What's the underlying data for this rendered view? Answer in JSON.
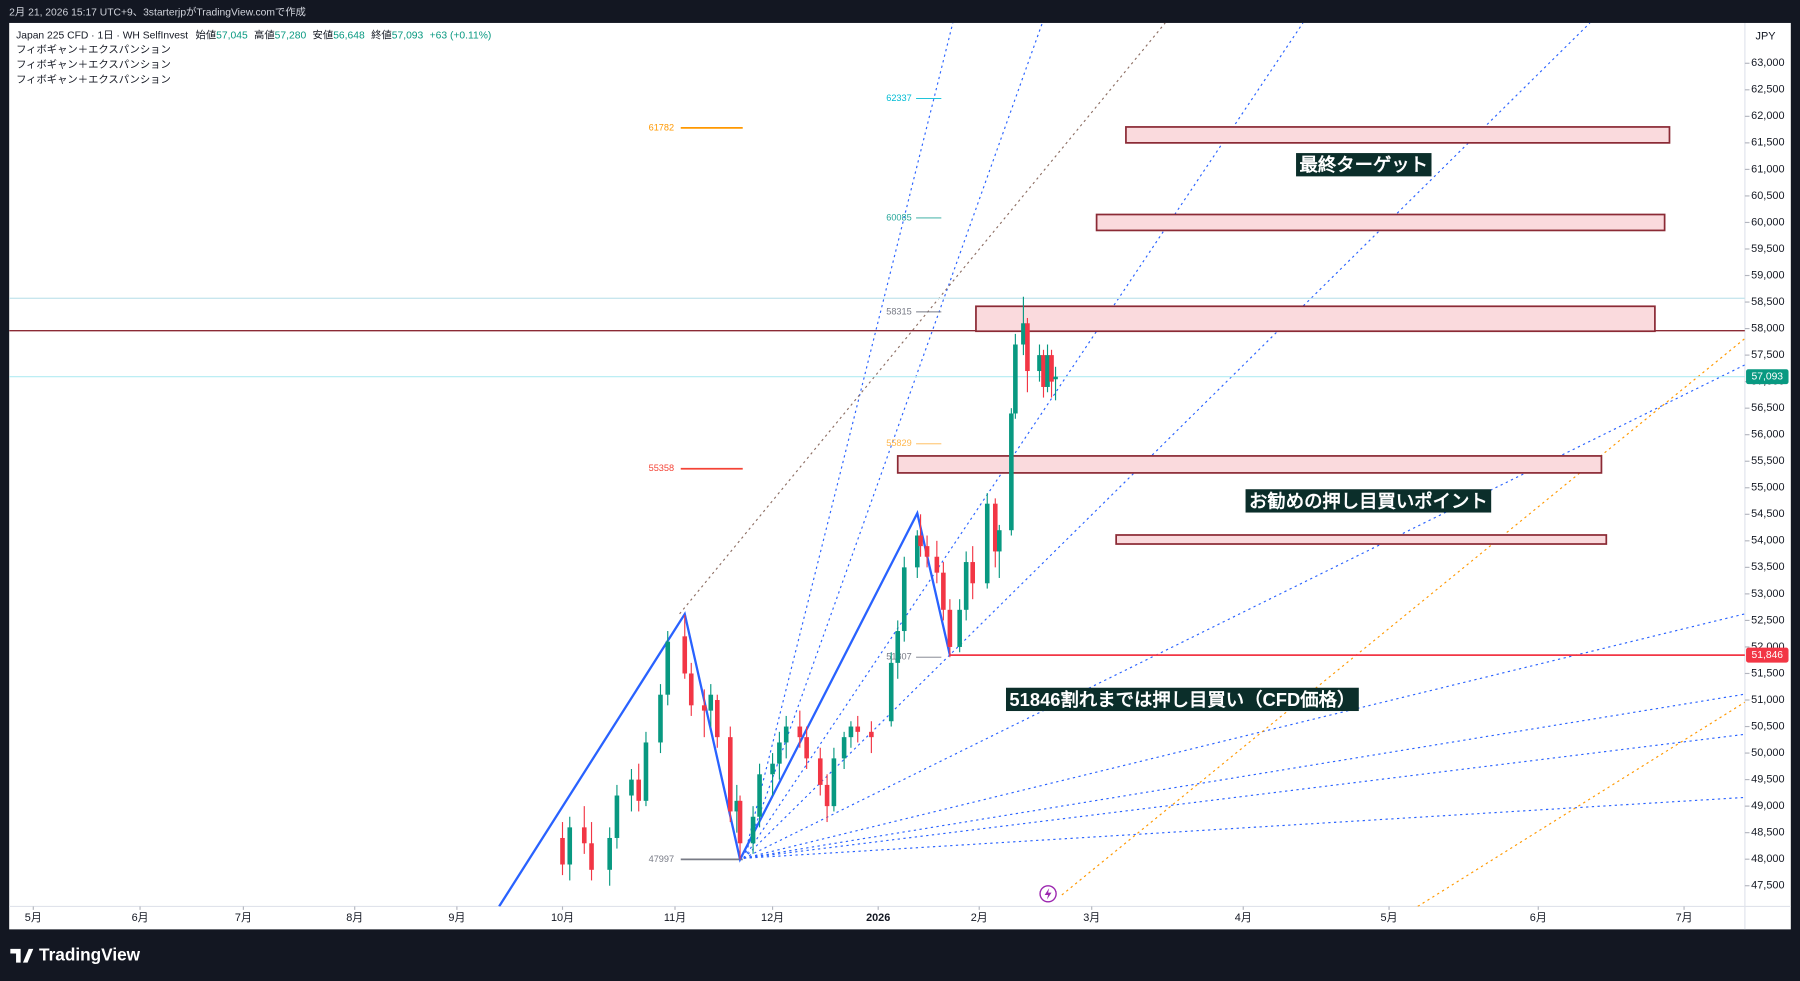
{
  "header": {
    "timestamp": "2月 21, 2026 15:17 UTC+9、3starterjpがTradingView.comで作成"
  },
  "legend": {
    "symbol": "Japan 225 CFD · 1日 · WH SelfInvest",
    "fields": [
      {
        "label": "始値",
        "value": "57,045"
      },
      {
        "label": "高値",
        "value": "57,280"
      },
      {
        "label": "安値",
        "value": "56,648"
      },
      {
        "label": "終値",
        "value": "57,093"
      }
    ],
    "change": "+63 (+0.11%)",
    "studies": [
      "フィボギャン＋エクスパンション",
      "フィボギャン＋エクスパンション",
      "フィボギャン＋エクスパンション"
    ]
  },
  "footer": {
    "brand": "TradingView"
  },
  "chart_data": {
    "type": "candlestick",
    "currency": "JPY",
    "up_color": "#089981",
    "down_color": "#f23645",
    "xlim": [
      "2025-04-24",
      "2026-07-14"
    ],
    "xticks": [
      {
        "value": "2025-05-01",
        "label": "5月"
      },
      {
        "value": "2025-06-01",
        "label": "6月"
      },
      {
        "value": "2025-07-01",
        "label": "7月"
      },
      {
        "value": "2025-08-01",
        "label": "8月"
      },
      {
        "value": "2025-09-01",
        "label": "9月"
      },
      {
        "value": "2025-10-01",
        "label": "10月"
      },
      {
        "value": "2025-11-01",
        "label": "11月"
      },
      {
        "value": "2025-12-01",
        "label": "12月"
      },
      {
        "value": "2026-01-01",
        "label": "2026"
      },
      {
        "value": "2026-02-01",
        "label": "2月"
      },
      {
        "value": "2026-03-01",
        "label": "3月"
      },
      {
        "value": "2026-04-01",
        "label": "4月"
      },
      {
        "value": "2026-05-01",
        "label": "5月"
      },
      {
        "value": "2026-06-01",
        "label": "6月"
      },
      {
        "value": "2026-07-01",
        "label": "7月"
      }
    ],
    "ylim": [
      47110,
      63760
    ],
    "yticks": [
      {
        "value": 47500,
        "label": "47,500"
      },
      {
        "value": 48000,
        "label": "48,000"
      },
      {
        "value": 48500,
        "label": "48,500"
      },
      {
        "value": 49000,
        "label": "49,000"
      },
      {
        "value": 49500,
        "label": "49,500"
      },
      {
        "value": 50000,
        "label": "50,000"
      },
      {
        "value": 50500,
        "label": "50,500"
      },
      {
        "value": 51000,
        "label": "51,000"
      },
      {
        "value": 51500,
        "label": "51,500"
      },
      {
        "value": 52000,
        "label": "52,000"
      },
      {
        "value": 52500,
        "label": "52,500"
      },
      {
        "value": 53000,
        "label": "53,000"
      },
      {
        "value": 53500,
        "label": "53,500"
      },
      {
        "value": 54000,
        "label": "54,000"
      },
      {
        "value": 54500,
        "label": "54,500"
      },
      {
        "value": 55000,
        "label": "55,000"
      },
      {
        "value": 55500,
        "label": "55,500"
      },
      {
        "value": 56000,
        "label": "56,000"
      },
      {
        "value": 56500,
        "label": "56,500"
      },
      {
        "value": 57000,
        "label": "57,000"
      },
      {
        "value": 57500,
        "label": "57,500"
      },
      {
        "value": 58000,
        "label": "58,000"
      },
      {
        "value": 58500,
        "label": "58,500"
      },
      {
        "value": 59000,
        "label": "59,000"
      },
      {
        "value": 59500,
        "label": "59,500"
      },
      {
        "value": 60000,
        "label": "60,000"
      },
      {
        "value": 60500,
        "label": "60,500"
      },
      {
        "value": 61000,
        "label": "61,000"
      },
      {
        "value": 61500,
        "label": "61,500"
      },
      {
        "value": 62000,
        "label": "62,000"
      },
      {
        "value": 62500,
        "label": "62,500"
      },
      {
        "value": 63000,
        "label": "63,000"
      }
    ],
    "x": [
      "2025-10-01",
      "2025-10-03",
      "2025-10-07",
      "2025-10-09",
      "2025-10-14",
      "2025-10-16",
      "2025-10-20",
      "2025-10-22",
      "2025-10-24",
      "2025-10-28",
      "2025-10-30",
      "2025-11-04",
      "2025-11-06",
      "2025-11-10",
      "2025-11-12",
      "2025-11-14",
      "2025-11-18",
      "2025-11-20",
      "2025-11-21",
      "2025-11-25",
      "2025-11-27",
      "2025-12-01",
      "2025-12-03",
      "2025-12-05",
      "2025-12-09",
      "2025-12-11",
      "2025-12-15",
      "2025-12-17",
      "2025-12-19",
      "2025-12-22",
      "2025-12-24",
      "2025-12-26",
      "2025-12-30",
      "2026-01-05",
      "2026-01-07",
      "2026-01-09",
      "2026-01-13",
      "2026-01-14",
      "2026-01-16",
      "2026-01-19",
      "2026-01-21",
      "2026-01-23",
      "2026-01-26",
      "2026-01-28",
      "2026-01-30",
      "2026-02-03",
      "2026-02-05",
      "2026-02-06",
      "2026-02-09",
      "2026-02-10",
      "2026-02-12",
      "2026-02-13",
      "2026-02-16",
      "2026-02-17",
      "2026-02-18",
      "2026-02-19",
      "2026-02-20"
    ],
    "open": [
      48400,
      47900,
      48600,
      48300,
      47800,
      48400,
      49200,
      49500,
      49100,
      50200,
      51100,
      52200,
      51500,
      50900,
      50800,
      51000,
      50300,
      48900,
      49100,
      48300,
      48800,
      49600,
      49800,
      50200,
      50500,
      50300,
      49900,
      49400,
      49000,
      49900,
      50300,
      50500,
      50400,
      50600,
      51700,
      52300,
      53500,
      54100,
      53900,
      53700,
      53400,
      52700,
      52000,
      52700,
      53600,
      53200,
      54700,
      53800,
      54200,
      56400,
      57700,
      58100,
      57200,
      57500,
      56900,
      57500,
      57045
    ],
    "high": [
      48700,
      48800,
      49000,
      48700,
      48600,
      49400,
      49700,
      49800,
      50400,
      51300,
      52300,
      52600,
      51700,
      51200,
      51300,
      51100,
      50500,
      49400,
      49200,
      49000,
      49800,
      50000,
      50400,
      50700,
      50800,
      50500,
      50100,
      49600,
      50100,
      50400,
      50600,
      50700,
      50600,
      51900,
      52500,
      53700,
      54200,
      54500,
      54100,
      54000,
      53600,
      52900,
      52900,
      53800,
      53900,
      54900,
      54800,
      54300,
      56500,
      57900,
      58600,
      58200,
      57700,
      57600,
      57700,
      57600,
      57280
    ],
    "low": [
      47700,
      47600,
      48100,
      47600,
      47500,
      48200,
      48900,
      48900,
      49000,
      50000,
      50900,
      51400,
      50700,
      50300,
      50500,
      50100,
      48700,
      48500,
      47997,
      48100,
      48600,
      49200,
      49500,
      49900,
      50100,
      49700,
      49200,
      48700,
      48900,
      49700,
      50100,
      50200,
      50000,
      50500,
      51400,
      52100,
      53300,
      53700,
      53500,
      53200,
      52500,
      51807,
      51900,
      52500,
      52900,
      53100,
      53500,
      53300,
      54100,
      56300,
      57500,
      56800,
      57000,
      56700,
      56800,
      56700,
      56648
    ],
    "close": [
      47900,
      48600,
      48300,
      47800,
      48400,
      49200,
      49500,
      49100,
      50200,
      51100,
      52100,
      51500,
      50900,
      50800,
      51100,
      50300,
      48900,
      49100,
      48300,
      48800,
      49600,
      49800,
      50200,
      50500,
      50300,
      49900,
      49400,
      49000,
      49900,
      50300,
      50500,
      50400,
      50300,
      51700,
      52300,
      53500,
      54100,
      53900,
      53700,
      53400,
      52700,
      52000,
      52700,
      53600,
      53200,
      54700,
      53800,
      54200,
      56400,
      57700,
      58100,
      57200,
      57500,
      56900,
      57500,
      57000,
      57093
    ],
    "zigzag": {
      "color": "#2962ff",
      "x": [
        "2025-09-13",
        "2025-11-04",
        "2025-11-21",
        "2026-01-13",
        "2026-01-23"
      ],
      "values": [
        47110,
        52620,
        47997,
        54520,
        51846
      ]
    },
    "zones": [
      {
        "start": "2026-03-08",
        "end": "2026-06-28",
        "low": 61500,
        "high": 61800
      },
      {
        "start": "2026-03-02",
        "end": "2026-06-27",
        "low": 59850,
        "high": 60150
      },
      {
        "start": "2026-01-31",
        "end": "2026-06-25",
        "low": 57950,
        "high": 58420
      },
      {
        "start": "2026-01-07",
        "end": "2026-06-14",
        "low": 55280,
        "high": 55600
      },
      {
        "start": "2026-03-06",
        "end": "2026-06-15",
        "low": 53940,
        "high": 54110
      }
    ],
    "zone_color": "#8b2a35",
    "hlines": [
      {
        "value": 57960,
        "color": "#8b2a35"
      },
      {
        "value": 58570,
        "color": "#c8e6ee"
      }
    ],
    "levels": [
      {
        "value": 62337,
        "color": "#00bcd4"
      },
      {
        "value": 61782,
        "color": "#ff9800"
      },
      {
        "value": 60085,
        "color": "#26a69a"
      },
      {
        "value": 58315,
        "color": "#787b86"
      },
      {
        "value": 55829,
        "color": "#ffb74d"
      },
      {
        "value": 55358,
        "color": "#f44336"
      },
      {
        "value": 51807,
        "color": "#787b86"
      },
      {
        "value": 47997,
        "color": "#787b86"
      }
    ],
    "price_labels": [
      {
        "value": 57093,
        "label": "57,093",
        "color": "#089981",
        "start": "2025-04-24"
      },
      {
        "value": 51846,
        "label": "51,846",
        "color": "#f23645",
        "start": "2026-01-23"
      }
    ],
    "annotations": [
      "最終ターゲット",
      "お勧めの押し目買いポイント",
      "51846割れまでは押し目買い（CFD価格）"
    ]
  }
}
